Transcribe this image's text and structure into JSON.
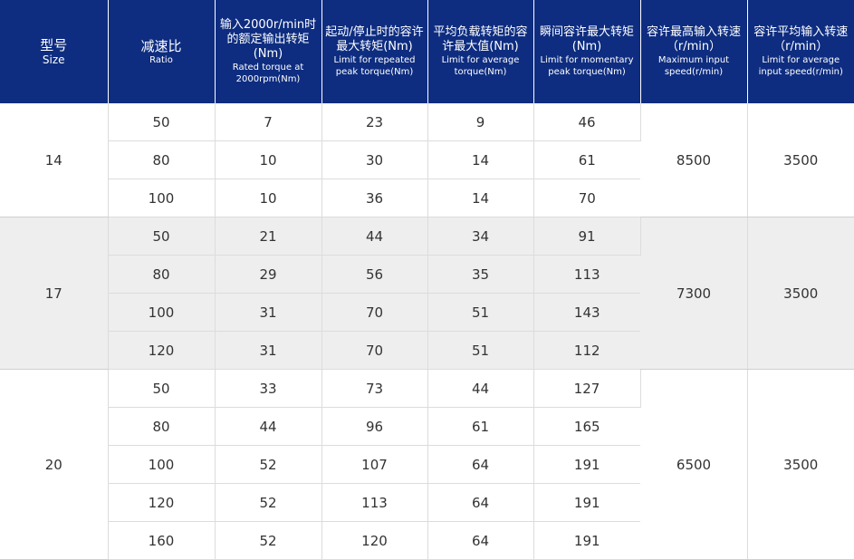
{
  "headers": [
    {
      "zh": "型号",
      "en": "Size"
    },
    {
      "zh": "减速比",
      "en": "Ratio"
    },
    {
      "zh": "输入2000r/min时的额定输出转矩(Nm)",
      "en": "Rated torque at 2000rpm(Nm)"
    },
    {
      "zh": "起动/停止时的容许最大转矩(Nm)",
      "en": "Limit for repeated peak torque(Nm)"
    },
    {
      "zh": "平均负载转矩的容许最大值(Nm)",
      "en": "Limit for average torque(Nm)"
    },
    {
      "zh": "瞬间容许最大转矩(Nm)",
      "en": "Limit for momentary peak torque(Nm)"
    },
    {
      "zh": "容许最高输入转速（r/min）",
      "en": "Maximum input speed(r/min)"
    },
    {
      "zh": "容许平均输入转速（r/min）",
      "en": "Limit for average input speed(r/min)"
    }
  ],
  "groups": [
    {
      "size": "14",
      "max_speed": "8500",
      "avg_speed": "3500",
      "rows": [
        {
          "ratio": "50",
          "rated": "7",
          "repeated": "23",
          "average": "9",
          "momentary": "46"
        },
        {
          "ratio": "80",
          "rated": "10",
          "repeated": "30",
          "average": "14",
          "momentary": "61"
        },
        {
          "ratio": "100",
          "rated": "10",
          "repeated": "36",
          "average": "14",
          "momentary": "70"
        }
      ]
    },
    {
      "size": "17",
      "max_speed": "7300",
      "avg_speed": "3500",
      "rows": [
        {
          "ratio": "50",
          "rated": "21",
          "repeated": "44",
          "average": "34",
          "momentary": "91"
        },
        {
          "ratio": "80",
          "rated": "29",
          "repeated": "56",
          "average": "35",
          "momentary": "113"
        },
        {
          "ratio": "100",
          "rated": "31",
          "repeated": "70",
          "average": "51",
          "momentary": "143"
        },
        {
          "ratio": "120",
          "rated": "31",
          "repeated": "70",
          "average": "51",
          "momentary": "112"
        }
      ]
    },
    {
      "size": "20",
      "max_speed": "6500",
      "avg_speed": "3500",
      "rows": [
        {
          "ratio": "50",
          "rated": "33",
          "repeated": "73",
          "average": "44",
          "momentary": "127"
        },
        {
          "ratio": "80",
          "rated": "44",
          "repeated": "96",
          "average": "61",
          "momentary": "165"
        },
        {
          "ratio": "100",
          "rated": "52",
          "repeated": "107",
          "average": "64",
          "momentary": "191"
        },
        {
          "ratio": "120",
          "rated": "52",
          "repeated": "113",
          "average": "64",
          "momentary": "191"
        },
        {
          "ratio": "160",
          "rated": "52",
          "repeated": "120",
          "average": "64",
          "momentary": "191"
        }
      ]
    }
  ],
  "colors": {
    "header_bg": "#0e2d80",
    "header_text": "#ffffff",
    "alt_row_bg": "#eeeeee",
    "grid": "#dcdcdc"
  }
}
